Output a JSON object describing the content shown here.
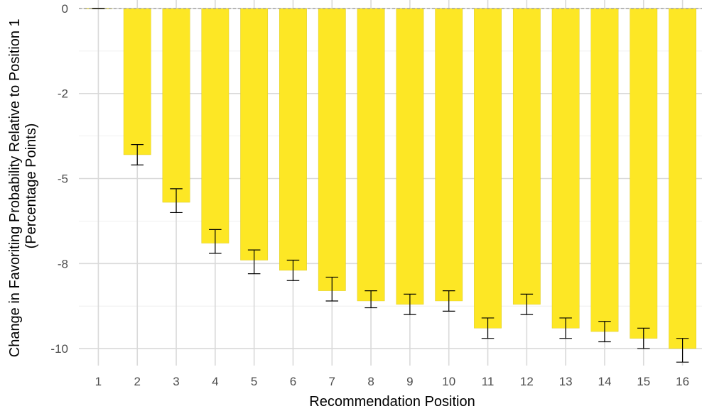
{
  "chart_data": {
    "type": "bar",
    "title": "",
    "xlabel": "Recommendation Position",
    "ylabel_lines": [
      "Change in Favoriting Probability Relative to Position 1",
      "(Percentage Points)"
    ],
    "categories": [
      "1",
      "2",
      "3",
      "4",
      "5",
      "6",
      "7",
      "8",
      "9",
      "10",
      "11",
      "12",
      "13",
      "14",
      "15",
      "16"
    ],
    "values": [
      0,
      -4.3,
      -5.7,
      -6.9,
      -7.4,
      -7.7,
      -8.3,
      -8.6,
      -8.7,
      -8.6,
      -9.4,
      -8.7,
      -9.4,
      -9.5,
      -9.7,
      -10.0
    ],
    "error_lower": [
      0,
      -4.6,
      -6.0,
      -7.2,
      -7.8,
      -8.0,
      -8.6,
      -8.8,
      -9.0,
      -8.9,
      -9.7,
      -9.0,
      -9.7,
      -9.8,
      -10.0,
      -10.4
    ],
    "error_upper": [
      0,
      -4.0,
      -5.3,
      -6.5,
      -7.1,
      -7.4,
      -7.9,
      -8.3,
      -8.4,
      -8.3,
      -9.1,
      -8.4,
      -9.1,
      -9.2,
      -9.4,
      -9.7
    ],
    "ylim": [
      -10.5,
      0.25
    ],
    "y_ticks": [
      0,
      -2.5,
      -5,
      -7.5,
      -10
    ],
    "y_tick_labels": [
      "0",
      "-2",
      "-5",
      "-8",
      "-10"
    ],
    "reference_line": 0,
    "grid": true,
    "bar_color": "#fde725",
    "errorbar_color": "#000000",
    "reference_line_color": "#999999"
  }
}
